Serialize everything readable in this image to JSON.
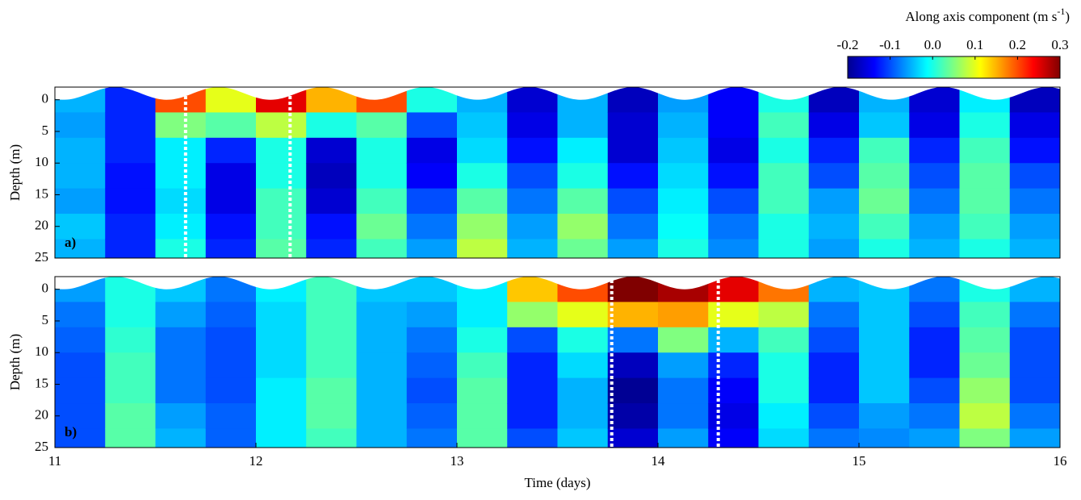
{
  "chart_data": [
    {
      "type": "heatmap",
      "panel_label": "a)",
      "ylabel": "Depth (m)",
      "x": [
        11.125,
        11.375,
        11.625,
        11.875,
        12.125,
        12.375,
        12.625,
        12.875,
        13.125,
        13.375,
        13.625,
        13.875,
        14.125,
        14.375,
        14.625,
        14.875,
        15.125,
        15.375,
        15.625,
        15.875
      ],
      "y": [
        0,
        4,
        8,
        12,
        16,
        20,
        24
      ],
      "z": [
        [
          -0.05,
          -0.06,
          -0.05,
          -0.05,
          -0.06,
          -0.04,
          -0.05
        ],
        [
          -0.12,
          -0.12,
          -0.12,
          -0.13,
          -0.13,
          -0.12,
          -0.12
        ],
        [
          0.2,
          0.05,
          -0.02,
          -0.02,
          -0.03,
          -0.02,
          0
        ],
        [
          0.1,
          0.03,
          -0.12,
          -0.15,
          -0.15,
          -0.13,
          -0.12
        ],
        [
          0.25,
          0.08,
          0,
          0,
          0.02,
          0.02,
          0.03
        ],
        [
          0.15,
          0,
          -0.16,
          -0.17,
          -0.16,
          -0.13,
          -0.12
        ],
        [
          0.2,
          0.03,
          0,
          0,
          0.02,
          0.04,
          0.02
        ],
        [
          0,
          -0.1,
          -0.15,
          -0.14,
          -0.1,
          -0.08,
          -0.06
        ],
        [
          -0.05,
          -0.04,
          -0.03,
          0,
          0.03,
          0.06,
          0.08
        ],
        [
          -0.16,
          -0.15,
          -0.13,
          -0.1,
          -0.08,
          -0.06,
          -0.05
        ],
        [
          -0.05,
          -0.05,
          -0.02,
          0,
          0.03,
          0.06,
          0.04
        ],
        [
          -0.17,
          -0.16,
          -0.16,
          -0.13,
          -0.1,
          -0.08,
          -0.06
        ],
        [
          -0.06,
          -0.05,
          -0.04,
          -0.03,
          -0.02,
          -0.01,
          0
        ],
        [
          -0.14,
          -0.14,
          -0.15,
          -0.13,
          -0.1,
          -0.08,
          -0.07
        ],
        [
          0,
          0.02,
          0,
          0.02,
          0.02,
          0,
          0
        ],
        [
          -0.17,
          -0.15,
          -0.12,
          -0.1,
          -0.06,
          -0.05,
          -0.06
        ],
        [
          -0.05,
          -0.04,
          0.02,
          0.03,
          0.04,
          0.02,
          0
        ],
        [
          -0.16,
          -0.15,
          -0.12,
          -0.1,
          -0.08,
          -0.06,
          -0.05
        ],
        [
          -0.02,
          0,
          0.02,
          0.03,
          0.03,
          0.02,
          0
        ],
        [
          -0.17,
          -0.15,
          -0.13,
          -0.1,
          -0.08,
          -0.06,
          -0.05
        ]
      ],
      "markers_x": [
        11.65,
        12.17
      ],
      "xlim": [
        11,
        16
      ],
      "ylim": [
        25,
        -2
      ],
      "yticks": [
        0,
        5,
        10,
        15,
        20,
        25
      ]
    },
    {
      "type": "heatmap",
      "panel_label": "b)",
      "ylabel": "Depth (m)",
      "xlabel": "Time (days)",
      "x": [
        11.125,
        11.375,
        11.625,
        11.875,
        12.125,
        12.375,
        12.625,
        12.875,
        13.125,
        13.375,
        13.625,
        13.875,
        14.125,
        14.375,
        14.625,
        14.875,
        15.125,
        15.375,
        15.625,
        15.875
      ],
      "y": [
        0,
        4,
        8,
        12,
        16,
        20,
        24
      ],
      "z": [
        [
          -0.06,
          -0.08,
          -0.09,
          -0.1,
          -0.1,
          -0.1,
          -0.1
        ],
        [
          0,
          0,
          0.01,
          0.02,
          0.02,
          0.03,
          0.03
        ],
        [
          -0.04,
          -0.06,
          -0.08,
          -0.08,
          -0.08,
          -0.06,
          -0.05
        ],
        [
          -0.08,
          -0.09,
          -0.1,
          -0.1,
          -0.1,
          -0.09,
          -0.09
        ],
        [
          -0.02,
          -0.03,
          -0.03,
          -0.03,
          -0.02,
          -0.02,
          -0.02
        ],
        [
          0.02,
          0.02,
          0.02,
          0.02,
          0.03,
          0.03,
          0.02
        ],
        [
          -0.04,
          -0.05,
          -0.05,
          -0.05,
          -0.05,
          -0.05,
          -0.05
        ],
        [
          -0.04,
          -0.06,
          -0.08,
          -0.09,
          -0.1,
          -0.09,
          -0.08
        ],
        [
          -0.02,
          -0.02,
          0,
          0.02,
          0.03,
          0.03,
          0.03
        ],
        [
          0.14,
          0.06,
          -0.1,
          -0.12,
          -0.12,
          -0.12,
          -0.1
        ],
        [
          0.2,
          0.1,
          0,
          -0.03,
          -0.05,
          -0.05,
          -0.04
        ],
        [
          0.3,
          0.15,
          -0.08,
          -0.17,
          -0.19,
          -0.18,
          -0.16
        ],
        [
          0.28,
          0.16,
          0.05,
          -0.06,
          -0.08,
          -0.08,
          -0.06
        ],
        [
          0.25,
          0.1,
          -0.05,
          -0.12,
          -0.14,
          -0.15,
          -0.14
        ],
        [
          0.18,
          0.08,
          0.02,
          0,
          0,
          -0.02,
          -0.03
        ],
        [
          -0.05,
          -0.08,
          -0.1,
          -0.12,
          -0.12,
          -0.1,
          -0.08
        ],
        [
          -0.04,
          -0.04,
          -0.04,
          -0.04,
          -0.04,
          -0.06,
          -0.07
        ],
        [
          -0.08,
          -0.1,
          -0.12,
          -0.12,
          -0.1,
          -0.08,
          -0.06
        ],
        [
          0,
          0.02,
          0.03,
          0.04,
          0.06,
          0.08,
          0.05
        ],
        [
          -0.05,
          -0.08,
          -0.1,
          -0.1,
          -0.1,
          -0.08,
          -0.06
        ]
      ],
      "markers_x": [
        13.77,
        14.3
      ],
      "xlim": [
        11,
        16
      ],
      "ylim": [
        25,
        -2
      ],
      "xticks": [
        11,
        12,
        13,
        14,
        15,
        16
      ],
      "yticks": [
        0,
        5,
        10,
        15,
        20,
        25
      ]
    },
    {
      "type": "colorbar",
      "label": [
        "Along axis component (m s",
        "-1",
        ")"
      ],
      "lim": [
        -0.2,
        0.3
      ],
      "ticks": [
        -0.2,
        -0.1,
        {
          "value": 0,
          "label": "0.0"
        },
        0.1,
        0.2,
        0.3
      ]
    }
  ]
}
